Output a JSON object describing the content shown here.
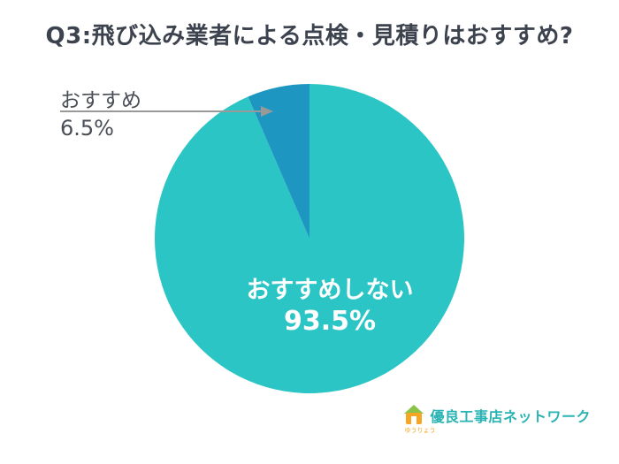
{
  "title": "Q3:飛び込み業者による点検・見積りはおすすめ?",
  "chart_data": {
    "type": "pie",
    "title": "Q3:飛び込み業者による点検・見積りはおすすめ?",
    "labels": [
      "おすすめしない",
      "おすすめ"
    ],
    "values": [
      93.5,
      6.5
    ],
    "colors": [
      "#2cc5c6",
      "#1d97c2"
    ],
    "start_angle_deg": 0,
    "direction": "clockwise",
    "legend_position": "none",
    "label_style": "main slice labeled inside in white; small slice labeled by external leader-line annotation"
  },
  "center_label": {
    "name": "おすすめしない",
    "pct": "93.5%"
  },
  "annotation": {
    "label": "おすすめ",
    "pct": "6.5%"
  },
  "colors": {
    "main_slice": "#2cc5c6",
    "small_slice": "#1d97c2",
    "title_text": "#3d434e",
    "annotation_text": "#4a4f57",
    "leader_line": "#999999",
    "logo_teal": "#2ab3b3",
    "logo_orange": "#f5a623",
    "logo_green": "#8bc34a"
  },
  "logo": {
    "text": "優良工事店ネットワーク",
    "ruby": "ゆうりょう"
  }
}
